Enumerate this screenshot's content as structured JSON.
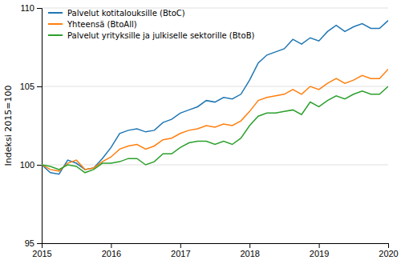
{
  "chart_data": {
    "type": "line",
    "y_label": "Indeksi 2015=100",
    "x": [
      2015,
      2015.125,
      2015.25,
      2015.375,
      2015.5,
      2015.625,
      2015.75,
      2015.875,
      2016,
      2016.125,
      2016.25,
      2016.375,
      2016.5,
      2016.625,
      2016.75,
      2016.875,
      2017,
      2017.125,
      2017.25,
      2017.375,
      2017.5,
      2017.625,
      2017.75,
      2017.875,
      2018,
      2018.125,
      2018.25,
      2018.375,
      2018.5,
      2018.625,
      2018.75,
      2018.875,
      2019,
      2019.125,
      2019.25,
      2019.375,
      2019.5,
      2019.625,
      2019.75,
      2019.875,
      2020
    ],
    "series": [
      {
        "name": "Palvelut kotitalouksille (BtoC)",
        "values": [
          100.0,
          99.5,
          99.4,
          100.3,
          100.1,
          99.7,
          99.8,
          100.4,
          101.1,
          102.0,
          102.2,
          102.3,
          102.1,
          102.2,
          102.7,
          102.9,
          103.3,
          103.5,
          103.7,
          104.1,
          104.0,
          104.3,
          104.2,
          104.5,
          105.4,
          106.5,
          107.0,
          107.2,
          107.4,
          108.0,
          107.7,
          108.1,
          107.9,
          108.5,
          108.9,
          108.5,
          108.8,
          109.0,
          108.7,
          108.7,
          109.2
        ]
      },
      {
        "name": "Yhteensä (BtoAll)",
        "values": [
          100.0,
          99.7,
          99.6,
          100.1,
          100.3,
          99.7,
          99.8,
          100.2,
          100.5,
          101.0,
          101.2,
          101.3,
          101.0,
          101.2,
          101.6,
          101.7,
          102.0,
          102.2,
          102.3,
          102.5,
          102.4,
          102.6,
          102.5,
          102.8,
          103.4,
          104.1,
          104.3,
          104.4,
          104.5,
          104.8,
          104.5,
          105.0,
          104.8,
          105.2,
          105.5,
          105.2,
          105.4,
          105.7,
          105.5,
          105.5,
          106.1
        ]
      },
      {
        "name": "Palvelut yrityksille ja julkiselle sektorille (BtoB)",
        "values": [
          100.0,
          99.9,
          99.7,
          100.0,
          99.9,
          99.5,
          99.7,
          100.1,
          100.1,
          100.2,
          100.4,
          100.4,
          100.0,
          100.2,
          100.7,
          100.7,
          101.1,
          101.4,
          101.5,
          101.5,
          101.3,
          101.5,
          101.3,
          101.7,
          102.5,
          103.1,
          103.3,
          103.3,
          103.4,
          103.5,
          103.2,
          104.0,
          103.7,
          104.1,
          104.4,
          104.2,
          104.5,
          104.7,
          104.5,
          104.5,
          105.0
        ]
      }
    ],
    "xlim": [
      2015,
      2020
    ],
    "xticks": [
      2015,
      2016,
      2017,
      2018,
      2019,
      2020
    ],
    "ylim": [
      95,
      110
    ],
    "yticks": [
      95,
      100,
      105,
      110
    ],
    "grid": true,
    "legend": "top-left"
  }
}
